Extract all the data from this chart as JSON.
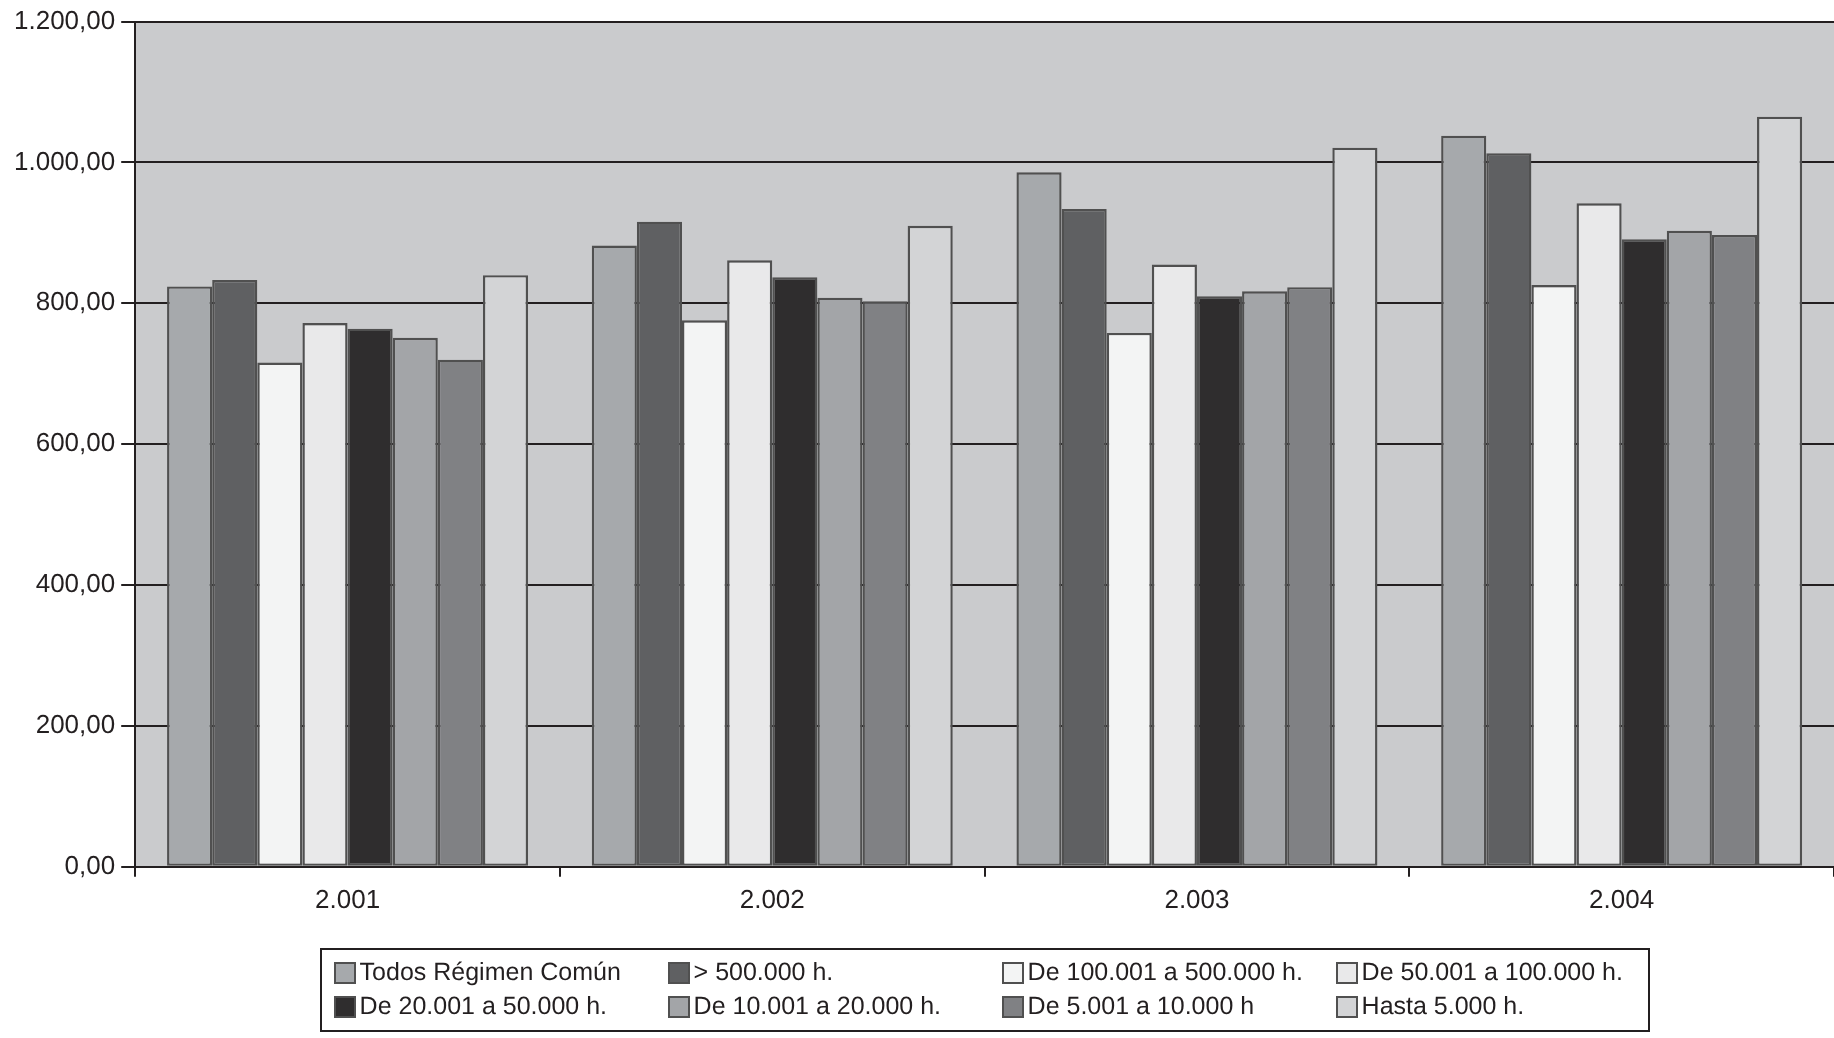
{
  "chart_data": {
    "type": "bar",
    "categories": [
      "2.001",
      "2.002",
      "2.003",
      "2.004"
    ],
    "series": [
      {
        "name": "Todos Régimen Común",
        "color": "#a6a9ac",
        "values": [
          824,
          882,
          986,
          1038
        ]
      },
      {
        "name": "> 500.000 h.",
        "color": "#5f6062",
        "values": [
          833,
          916,
          934,
          1013
        ]
      },
      {
        "name": "De 100.001 a 500.000 h.",
        "color": "#f3f4f4",
        "values": [
          716,
          776,
          758,
          826
        ]
      },
      {
        "name": "De 50.001 a 100.000 h.",
        "color": "#e9e9ea",
        "values": [
          772,
          861,
          855,
          942
        ]
      },
      {
        "name": "De 20.001 a 50.000 h.",
        "color": "#2f2d2e",
        "values": [
          764,
          837,
          810,
          891
        ]
      },
      {
        "name": "De 10.001 a 20.000 h.",
        "color": "#a3a5a8",
        "values": [
          751,
          808,
          817,
          903
        ]
      },
      {
        "name": "De 5.001 a 10.000 h",
        "color": "#808184",
        "values": [
          720,
          803,
          823,
          897
        ]
      },
      {
        "name": "Hasta 5.000 h.",
        "color": "#d3d4d6",
        "values": [
          840,
          910,
          1021,
          1065
        ]
      }
    ],
    "ylim": [
      0,
      1200
    ],
    "yticks": [
      {
        "value": 0,
        "label": "0,00"
      },
      {
        "value": 200,
        "label": "200,00"
      },
      {
        "value": 400,
        "label": "400,00"
      },
      {
        "value": 600,
        "label": "600,00"
      },
      {
        "value": 800,
        "label": "800,00"
      },
      {
        "value": 1000,
        "label": "1.000,00"
      },
      {
        "value": 1200,
        "label": "1.200,00"
      }
    ],
    "grid": "y",
    "legend": "bottom"
  }
}
